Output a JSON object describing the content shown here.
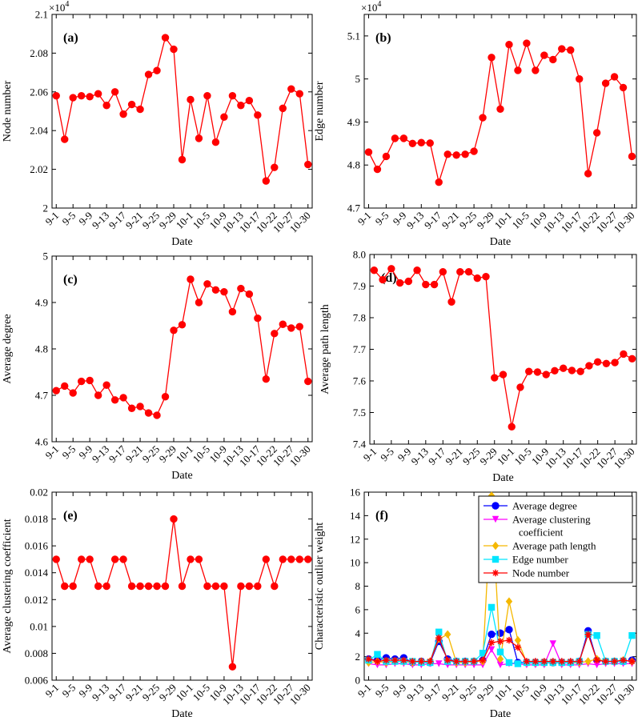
{
  "chart_data": [
    {
      "type": "line",
      "panel_label": "(a)",
      "ylabel": "Node number",
      "xlabel": "Date",
      "y_multiplier": "×10",
      "y_multiplier_exponent": "4",
      "categories": [
        "9-1",
        null,
        "9-5",
        null,
        "9-9",
        null,
        "9-13",
        null,
        "9-17",
        null,
        "9-21",
        null,
        "9-25",
        null,
        "9-29",
        null,
        "10-1",
        null,
        "10-5",
        null,
        "10-9",
        null,
        "10-13",
        null,
        "10-17",
        null,
        "10-22",
        null,
        "10-27",
        null,
        "10-30"
      ],
      "values": [
        2.058,
        2.0355,
        2.057,
        2.058,
        2.0575,
        2.059,
        2.053,
        2.06,
        2.0485,
        2.0535,
        2.051,
        2.069,
        2.071,
        2.088,
        2.082,
        2.025,
        2.056,
        2.036,
        2.058,
        2.034,
        2.047,
        2.058,
        2.053,
        2.0555,
        2.048,
        2.014,
        2.021,
        2.0515,
        2.0615,
        2.059,
        2.0225
      ],
      "color": "#ff0000",
      "marker": "circle",
      "ylim": [
        2,
        2.1
      ],
      "yticks": [
        2,
        2.02,
        2.04,
        2.06,
        2.08,
        2.1
      ]
    },
    {
      "type": "line",
      "panel_label": "(b)",
      "ylabel": "Edge number",
      "xlabel": "Date",
      "y_multiplier": "×10",
      "y_multiplier_exponent": "4",
      "categories": [
        "9-1",
        null,
        "9-5",
        null,
        "9-9",
        null,
        "9-13",
        null,
        "9-17",
        null,
        "9-21",
        null,
        "9-25",
        null,
        "9-29",
        null,
        "10-1",
        null,
        "10-5",
        null,
        "10-9",
        null,
        "10-13",
        null,
        "10-17",
        null,
        "10-22",
        null,
        "10-27",
        null,
        "10-30"
      ],
      "values": [
        4.83,
        4.79,
        4.82,
        4.862,
        4.862,
        4.85,
        4.852,
        4.851,
        4.76,
        4.825,
        4.823,
        4.825,
        4.832,
        4.91,
        5.05,
        4.93,
        5.08,
        5.02,
        5.083,
        5.02,
        5.055,
        5.045,
        5.07,
        5.067,
        5.0,
        4.78,
        4.875,
        4.99,
        5.005,
        4.98,
        4.82
      ],
      "color": "#ff0000",
      "marker": "circle",
      "ylim": [
        4.7,
        5.15
      ],
      "yticks": [
        4.7,
        4.8,
        4.9,
        5,
        5.1
      ]
    },
    {
      "type": "line",
      "panel_label": "(c)",
      "ylabel": "Average degree",
      "xlabel": "Date",
      "categories": [
        "9-1",
        null,
        "9-5",
        null,
        "9-9",
        null,
        "9-13",
        null,
        "9-17",
        null,
        "9-21",
        null,
        "9-25",
        null,
        "9-29",
        null,
        "10-1",
        null,
        "10-5",
        null,
        "10-9",
        null,
        "10-13",
        null,
        "10-17",
        null,
        "10-22",
        null,
        "10-27",
        null,
        "10-30"
      ],
      "values": [
        4.71,
        4.72,
        4.705,
        4.73,
        4.732,
        4.7,
        4.722,
        4.69,
        4.695,
        4.672,
        4.676,
        4.662,
        4.657,
        4.697,
        4.84,
        4.852,
        4.95,
        4.9,
        4.94,
        4.927,
        4.923,
        4.88,
        4.93,
        4.918,
        4.866,
        4.735,
        4.833,
        4.853,
        4.845,
        4.848,
        4.73
      ],
      "color": "#ff0000",
      "marker": "circle",
      "ylim": [
        4.6,
        5
      ],
      "yticks": [
        4.6,
        4.7,
        4.8,
        4.9,
        5
      ]
    },
    {
      "type": "line",
      "panel_label": "(d)",
      "ylabel": "Average path length",
      "xlabel": "Date",
      "categories": [
        "9-1",
        null,
        "9-5",
        null,
        "9-9",
        null,
        "9-13",
        null,
        "9-17",
        null,
        "9-21",
        null,
        "9-25",
        null,
        "9-29",
        null,
        "10-1",
        null,
        "10-5",
        null,
        "10-9",
        null,
        "10-13",
        null,
        "10-17",
        null,
        "10-22",
        null,
        "10-27",
        null,
        "10-30"
      ],
      "values": [
        7.95,
        7.92,
        7.955,
        7.91,
        7.915,
        7.95,
        7.905,
        7.905,
        7.945,
        7.85,
        7.945,
        7.945,
        7.925,
        7.93,
        7.61,
        7.62,
        7.455,
        7.58,
        7.63,
        7.628,
        7.62,
        7.632,
        7.64,
        7.633,
        7.63,
        7.648,
        7.66,
        7.655,
        7.658,
        7.685,
        7.67
      ],
      "color": "#ff0000",
      "marker": "circle",
      "ylim": [
        7.4,
        8
      ],
      "yticks": [
        7.4,
        7.5,
        7.6,
        7.7,
        7.8,
        7.9,
        {
          "value": 8,
          "label": "8.0"
        }
      ]
    },
    {
      "type": "line",
      "panel_label": "(e)",
      "ylabel": "Average clustering coefficient",
      "xlabel": "Date",
      "categories": [
        "9-1",
        null,
        "9-5",
        null,
        "9-9",
        null,
        "9-13",
        null,
        "9-17",
        null,
        "9-21",
        null,
        "9-25",
        null,
        "9-29",
        null,
        "10-1",
        null,
        "10-5",
        null,
        "10-9",
        null,
        "10-13",
        null,
        "10-17",
        null,
        "10-22",
        null,
        "10-27",
        null,
        "10-30"
      ],
      "values": [
        0.015,
        0.013,
        0.013,
        0.015,
        0.015,
        0.013,
        0.013,
        0.015,
        0.015,
        0.013,
        0.013,
        0.013,
        0.013,
        0.013,
        0.018,
        0.013,
        0.015,
        0.015,
        0.013,
        0.013,
        0.013,
        0.007,
        0.013,
        0.013,
        0.013,
        0.015,
        0.013,
        0.015,
        0.015,
        0.015,
        0.015
      ],
      "color": "#ff0000",
      "marker": "circle",
      "ylim": [
        0.006,
        0.02
      ],
      "yticks": [
        0.006,
        0.008,
        0.01,
        0.012,
        0.014,
        0.016,
        0.018,
        0.02
      ]
    },
    {
      "type": "line",
      "panel_label": "(f)",
      "ylabel": "Characteristic outlier weight",
      "xlabel": "Date",
      "legend": "upper right",
      "categories": [
        "9-1",
        null,
        "9-5",
        null,
        "9-9",
        null,
        "9-13",
        null,
        "9-17",
        null,
        "9-21",
        null,
        "9-25",
        null,
        "9-29",
        null,
        "10-1",
        null,
        "10-5",
        null,
        "10-9",
        null,
        "10-13",
        null,
        "10-17",
        null,
        "10-22",
        null,
        "10-27",
        null,
        "10-30"
      ],
      "series": [
        {
          "name": "Average degree",
          "color": "#0000ff",
          "marker": "circle",
          "values": [
            1.8,
            1.7,
            1.9,
            1.8,
            1.9,
            1.5,
            1.6,
            1.5,
            3.3,
            1.8,
            1.6,
            1.6,
            1.6,
            1.7,
            3.9,
            4.0,
            4.3,
            1.5,
            1.5,
            1.5,
            1.5,
            1.5,
            1.5,
            1.5,
            1.6,
            4.2,
            1.7,
            1.6,
            1.6,
            1.6,
            1.7
          ]
        },
        {
          "name": "Average clustering coefficient",
          "color": "#ff00ff",
          "marker": "triangle-down",
          "values": [
            1.4,
            1.3,
            1.3,
            1.4,
            1.4,
            1.3,
            1.3,
            1.4,
            1.4,
            1.3,
            1.3,
            1.3,
            1.3,
            1.3,
            2.6,
            1.3,
            1.4,
            1.4,
            1.3,
            1.3,
            1.3,
            3.1,
            1.3,
            1.3,
            1.3,
            1.4,
            1.3,
            1.4,
            1.4,
            1.4,
            1.4
          ]
        },
        {
          "name": "Average path length",
          "color": "#f5b800",
          "marker": "diamond",
          "values": [
            1.5,
            1.6,
            1.5,
            1.6,
            1.6,
            1.5,
            1.6,
            1.6,
            3.5,
            3.9,
            1.5,
            1.5,
            1.6,
            1.6,
            15.7,
            1.8,
            6.7,
            3.4,
            1.5,
            1.5,
            1.5,
            1.5,
            1.5,
            1.5,
            1.5,
            1.6,
            1.8,
            1.6,
            1.6,
            1.7,
            1.6
          ]
        },
        {
          "name": "Edge number",
          "color": "#00e5ff",
          "marker": "square",
          "values": [
            1.7,
            2.2,
            1.6,
            1.6,
            1.6,
            1.6,
            1.5,
            1.5,
            4.1,
            1.6,
            1.6,
            1.6,
            1.6,
            2.3,
            6.2,
            2.4,
            1.5,
            1.4,
            1.5,
            1.5,
            1.5,
            1.5,
            1.5,
            1.5,
            1.6,
            3.9,
            3.8,
            1.6,
            1.6,
            1.6,
            3.8
          ]
        },
        {
          "name": "Node number",
          "color": "#ff0000",
          "marker": "star",
          "values": [
            1.8,
            1.6,
            1.7,
            1.7,
            1.7,
            1.6,
            1.6,
            1.6,
            3.6,
            1.7,
            1.6,
            1.6,
            1.6,
            1.7,
            3.2,
            3.3,
            3.4,
            2.8,
            1.6,
            1.6,
            1.6,
            1.6,
            1.6,
            1.6,
            1.6,
            3.9,
            1.7,
            1.6,
            1.6,
            1.7,
            1.6
          ]
        }
      ],
      "ylim": [
        0,
        16
      ],
      "yticks": [
        0,
        2,
        4,
        6,
        8,
        10,
        12,
        14,
        16
      ]
    }
  ]
}
